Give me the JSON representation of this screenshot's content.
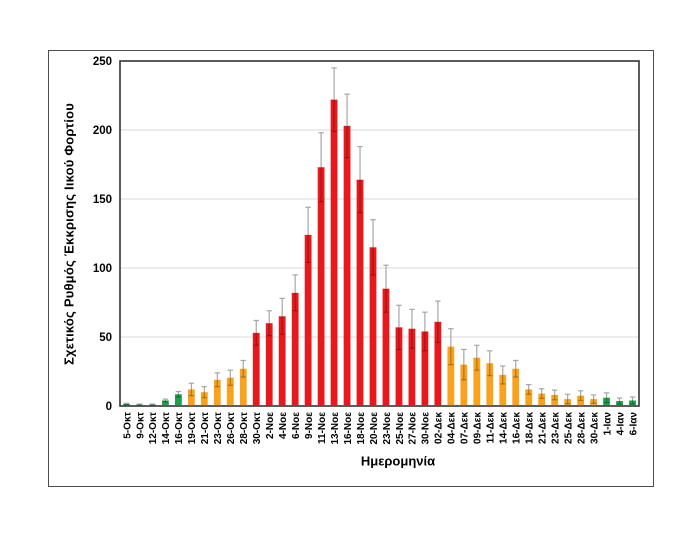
{
  "figure": {
    "background": "#ffffff",
    "frame_border_color": "#4d4d4d"
  },
  "chart_data": {
    "type": "bar",
    "title": "",
    "xlabel": "Ημερομηνία",
    "ylabel": "Σχετικός Ρυθμός Έκκρισης Ιικού Φορτίου",
    "ylim": [
      0,
      250
    ],
    "yticks": [
      0,
      50,
      100,
      150,
      200,
      250
    ],
    "grid": true,
    "legend": false,
    "error_bars": "upper whiskers with caps, lower whisker shaded inside bar",
    "categories": [
      "5-Οκτ",
      "9-Οκτ",
      "12-Οκτ",
      "14-Οκτ",
      "16-Οκτ",
      "19-Οκτ",
      "21-Οκτ",
      "23-Οκτ",
      "26-Οκτ",
      "28-Οκτ",
      "30-Οκτ",
      "2-Νοε",
      "4-Νοε",
      "6-Νοε",
      "9-Νοε",
      "11-Νοε",
      "13-Νοε",
      "16-Νοε",
      "18-Νοε",
      "20-Νοε",
      "23-Νοε",
      "25-Νοε",
      "27-Νοε",
      "30-Νοε",
      "02-Δεκ",
      "04-Δεκ",
      "07-Δεκ",
      "09-Δεκ",
      "11-Δεκ",
      "14-Δεκ",
      "16-Δεκ",
      "18-Δεκ",
      "21-Δεκ",
      "23-Δεκ",
      "25-Δεκ",
      "28-Δεκ",
      "30-Δεκ",
      "1-Ιαν",
      "4-Ιαν",
      "6-Ιαν"
    ],
    "values": [
      1.5,
      1,
      1,
      4,
      8.5,
      12,
      10,
      19,
      20.5,
      27,
      53,
      60,
      65,
      82,
      124,
      173,
      222,
      203,
      164,
      115,
      85,
      57,
      56,
      54,
      61,
      43,
      30,
      35,
      31,
      22.5,
      27,
      12,
      9,
      8,
      5,
      7.5,
      5,
      6,
      3.6,
      4
    ],
    "errors": [
      0.5,
      0.4,
      0.4,
      1,
      2,
      4.5,
      4,
      5,
      5.5,
      6,
      9,
      9,
      13,
      13,
      20,
      25,
      23,
      23,
      24,
      20,
      17,
      16,
      14,
      14,
      15,
      13,
      11,
      9,
      9,
      6.5,
      6,
      3.5,
      3.5,
      3.5,
      3.5,
      3.5,
      3,
      3.5,
      2.2,
      2.5
    ],
    "bar_colors": [
      "green",
      "green",
      "green",
      "green",
      "green",
      "orange",
      "orange",
      "orange",
      "orange",
      "orange",
      "red",
      "red",
      "red",
      "red",
      "red",
      "red",
      "red",
      "red",
      "red",
      "red",
      "red",
      "red",
      "red",
      "red",
      "red",
      "orange",
      "orange",
      "orange",
      "orange",
      "orange",
      "orange",
      "orange",
      "orange",
      "orange",
      "orange",
      "orange",
      "orange",
      "green",
      "green",
      "green"
    ],
    "palette": {
      "red": "#e8191c",
      "orange": "#f9a21e",
      "green": "#1ea14d"
    },
    "error_bar_color": "#a6a6a6",
    "gridline_color": "#d9d9d9",
    "axis_color": "#333333",
    "text_color": "#000000"
  }
}
